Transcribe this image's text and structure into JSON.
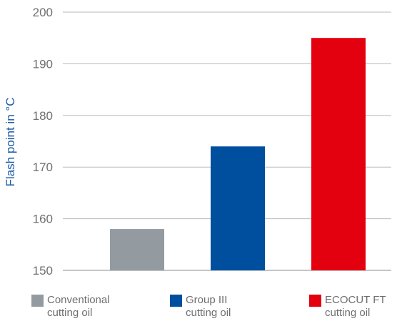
{
  "chart_data": {
    "type": "bar",
    "title": "",
    "xlabel": "",
    "ylabel": "Flash point in °C",
    "ylim": [
      150,
      200
    ],
    "yticks": [
      150,
      160,
      170,
      180,
      190,
      200
    ],
    "grid": true,
    "legend_position": "bottom",
    "categories": [
      {
        "line1": "Conventional",
        "line2": "cutting oil"
      },
      {
        "line1": "Group III",
        "line2": "cutting oil"
      },
      {
        "line1": "ECOCUT FT",
        "line2": "cutting oil"
      }
    ],
    "values": [
      158,
      174,
      195
    ],
    "colors": [
      "#939ba1",
      "#004f9f",
      "#e3000f"
    ]
  }
}
